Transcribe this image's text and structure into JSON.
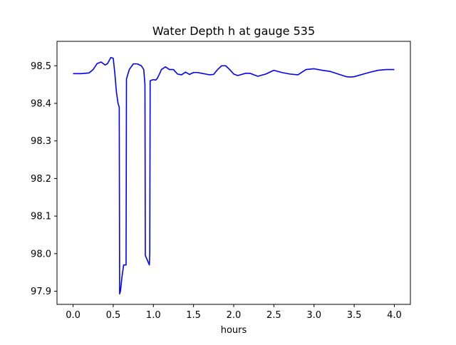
{
  "chart_data": {
    "type": "line",
    "title": "Water Depth h at gauge 535",
    "xlabel": "hours",
    "ylabel": "",
    "xlim": [
      -0.2,
      4.2
    ],
    "ylim": [
      97.865,
      98.565
    ],
    "xticks": [
      0.0,
      0.5,
      1.0,
      1.5,
      2.0,
      2.5,
      3.0,
      3.5,
      4.0
    ],
    "xtick_labels": [
      "0.0",
      "0.5",
      "1.0",
      "1.5",
      "2.0",
      "2.5",
      "3.0",
      "3.5",
      "4.0"
    ],
    "yticks": [
      97.9,
      98.0,
      98.1,
      98.2,
      98.3,
      98.4,
      98.5
    ],
    "ytick_labels": [
      "97.9",
      "98.0",
      "98.1",
      "98.2",
      "98.3",
      "98.4",
      "98.5"
    ],
    "grid": false,
    "series": [
      {
        "color": "#0000ff",
        "x": [
          0.0,
          0.1,
          0.2,
          0.25,
          0.3,
          0.35,
          0.4,
          0.43,
          0.47,
          0.5,
          0.52,
          0.54,
          0.56,
          0.575,
          0.58,
          0.59,
          0.61,
          0.63,
          0.66,
          0.665,
          0.7,
          0.75,
          0.8,
          0.85,
          0.88,
          0.895,
          0.9,
          0.95,
          0.955,
          0.96,
          0.98,
          1.0,
          1.03,
          1.05,
          1.08,
          1.1,
          1.15,
          1.2,
          1.25,
          1.3,
          1.35,
          1.4,
          1.45,
          1.5,
          1.55,
          1.6,
          1.65,
          1.7,
          1.75,
          1.8,
          1.85,
          1.9,
          1.95,
          2.0,
          2.05,
          2.1,
          2.15,
          2.2,
          2.3,
          2.4,
          2.5,
          2.6,
          2.7,
          2.8,
          2.9,
          3.0,
          3.1,
          3.2,
          3.3,
          3.4,
          3.45,
          3.5,
          3.6,
          3.7,
          3.8,
          3.9,
          4.0
        ],
        "values": [
          98.479,
          98.479,
          98.481,
          98.49,
          98.506,
          98.51,
          98.502,
          98.506,
          98.522,
          98.52,
          98.48,
          98.43,
          98.4,
          98.39,
          97.893,
          97.9,
          97.94,
          97.97,
          97.97,
          98.465,
          98.49,
          98.505,
          98.505,
          98.5,
          98.49,
          98.45,
          97.995,
          97.97,
          98.0,
          98.46,
          98.462,
          98.463,
          98.462,
          98.467,
          98.48,
          98.49,
          98.497,
          98.49,
          98.49,
          98.478,
          98.476,
          98.483,
          98.477,
          98.482,
          98.482,
          98.48,
          98.478,
          98.476,
          98.477,
          98.49,
          98.5,
          98.5,
          98.49,
          98.478,
          98.474,
          98.477,
          98.48,
          98.48,
          98.472,
          98.478,
          98.488,
          98.482,
          98.478,
          98.476,
          98.49,
          98.492,
          98.488,
          98.485,
          98.478,
          98.471,
          98.47,
          98.471,
          98.477,
          98.483,
          98.488,
          98.49,
          98.49
        ]
      }
    ]
  }
}
